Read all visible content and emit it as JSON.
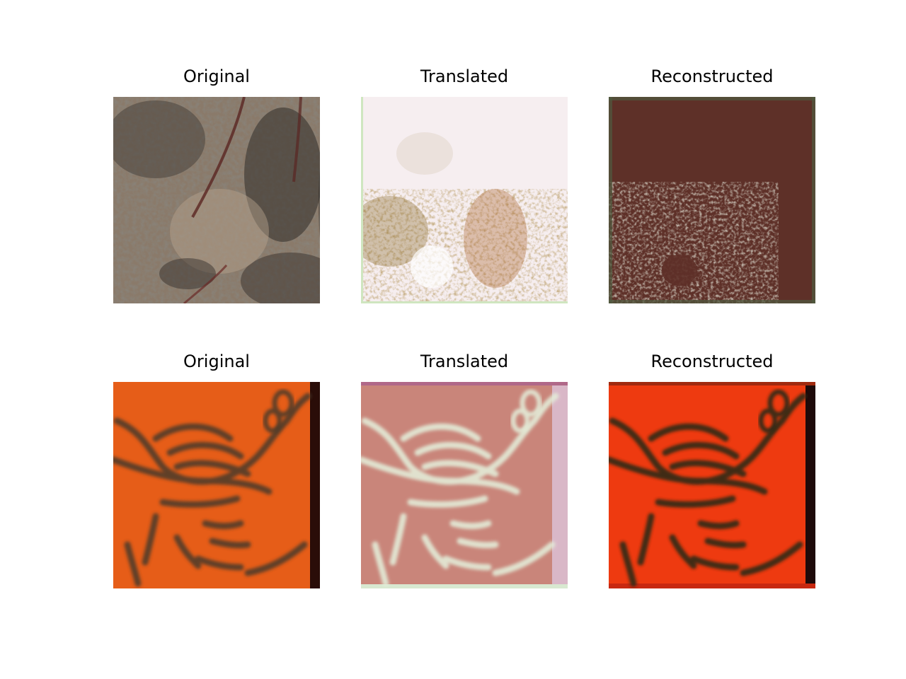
{
  "grid": {
    "rows": [
      {
        "panels": [
          {
            "title": "Original"
          },
          {
            "title": "Translated"
          },
          {
            "title": "Reconstructed"
          }
        ]
      },
      {
        "panels": [
          {
            "title": "Original"
          },
          {
            "title": "Translated"
          },
          {
            "title": "Reconstructed"
          }
        ]
      }
    ]
  }
}
